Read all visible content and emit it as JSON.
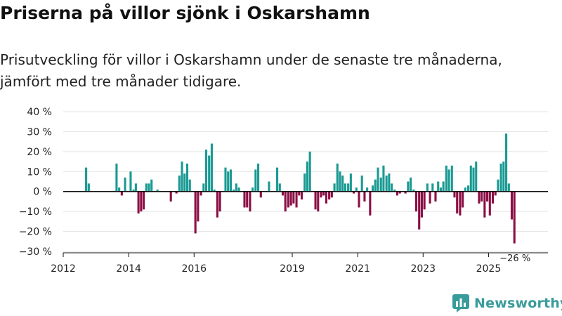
{
  "title": "Priserna på villor sjönk i Oskarshamn",
  "subtitle_line1": "Prisutveckling för villor i Oskarshamn under de senaste tre månaderna,",
  "subtitle_line2": "jämfört med tre månader tidigare.",
  "brand": "Newsworthy",
  "colors": {
    "positive": "#1a9a93",
    "negative": "#8b0f45",
    "grid": "#e3e3e3",
    "axis": "#111111"
  },
  "chart_data": {
    "type": "bar",
    "ylabel": "",
    "xlabel": "",
    "ylim": [
      -30,
      40
    ],
    "yticks": [
      40,
      30,
      20,
      10,
      0,
      -10,
      -20,
      -30
    ],
    "ytick_labels": [
      "40 %",
      "30 %",
      "20 %",
      "10 %",
      "0 %",
      "−10 %",
      "−20 %",
      "−30 %"
    ],
    "xticks": [
      2012,
      2014,
      2016,
      2019,
      2021,
      2023,
      2025
    ],
    "xtick_labels": [
      "2012",
      "2014",
      "2016",
      "2019",
      "2021",
      "2023",
      "2025"
    ],
    "x_start": 2012,
    "x_end": 2026,
    "annotation": "−26 %",
    "bars": [
      {
        "x": 2012.7,
        "v": 12
      },
      {
        "x": 2012.78,
        "v": 4
      },
      {
        "x": 2013.63,
        "v": 14
      },
      {
        "x": 2013.71,
        "v": 2
      },
      {
        "x": 2013.79,
        "v": -2
      },
      {
        "x": 2013.89,
        "v": 7
      },
      {
        "x": 2014.06,
        "v": 10
      },
      {
        "x": 2014.15,
        "v": 1
      },
      {
        "x": 2014.22,
        "v": 4
      },
      {
        "x": 2014.3,
        "v": -11
      },
      {
        "x": 2014.38,
        "v": -10
      },
      {
        "x": 2014.46,
        "v": -9
      },
      {
        "x": 2014.54,
        "v": 4
      },
      {
        "x": 2014.62,
        "v": 4
      },
      {
        "x": 2014.7,
        "v": 6
      },
      {
        "x": 2014.88,
        "v": 1
      },
      {
        "x": 2015.29,
        "v": -5
      },
      {
        "x": 2015.46,
        "v": -1
      },
      {
        "x": 2015.55,
        "v": 8
      },
      {
        "x": 2015.63,
        "v": 15
      },
      {
        "x": 2015.71,
        "v": 9
      },
      {
        "x": 2015.79,
        "v": 14
      },
      {
        "x": 2015.87,
        "v": 6
      },
      {
        "x": 2016.04,
        "v": -21
      },
      {
        "x": 2016.12,
        "v": -15
      },
      {
        "x": 2016.21,
        "v": -2
      },
      {
        "x": 2016.29,
        "v": 4
      },
      {
        "x": 2016.37,
        "v": 21
      },
      {
        "x": 2016.46,
        "v": 18
      },
      {
        "x": 2016.54,
        "v": 24
      },
      {
        "x": 2016.62,
        "v": 1
      },
      {
        "x": 2016.71,
        "v": -13
      },
      {
        "x": 2016.79,
        "v": -10
      },
      {
        "x": 2016.96,
        "v": 12
      },
      {
        "x": 2017.04,
        "v": 10
      },
      {
        "x": 2017.12,
        "v": 11
      },
      {
        "x": 2017.21,
        "v": 1
      },
      {
        "x": 2017.29,
        "v": 4
      },
      {
        "x": 2017.37,
        "v": 2
      },
      {
        "x": 2017.54,
        "v": -8
      },
      {
        "x": 2017.62,
        "v": -8
      },
      {
        "x": 2017.71,
        "v": -10
      },
      {
        "x": 2017.79,
        "v": 2
      },
      {
        "x": 2017.88,
        "v": 11
      },
      {
        "x": 2017.96,
        "v": 14
      },
      {
        "x": 2018.04,
        "v": -3
      },
      {
        "x": 2018.29,
        "v": 5
      },
      {
        "x": 2018.54,
        "v": 12
      },
      {
        "x": 2018.62,
        "v": 4
      },
      {
        "x": 2018.71,
        "v": -2
      },
      {
        "x": 2018.79,
        "v": -10
      },
      {
        "x": 2018.88,
        "v": -8
      },
      {
        "x": 2018.96,
        "v": -7
      },
      {
        "x": 2019.04,
        "v": -6
      },
      {
        "x": 2019.13,
        "v": -8
      },
      {
        "x": 2019.21,
        "v": -2
      },
      {
        "x": 2019.29,
        "v": -4
      },
      {
        "x": 2019.38,
        "v": 9
      },
      {
        "x": 2019.46,
        "v": 15
      },
      {
        "x": 2019.54,
        "v": 20
      },
      {
        "x": 2019.71,
        "v": -9
      },
      {
        "x": 2019.79,
        "v": -10
      },
      {
        "x": 2019.88,
        "v": -3
      },
      {
        "x": 2019.96,
        "v": -2
      },
      {
        "x": 2020.04,
        "v": -6
      },
      {
        "x": 2020.13,
        "v": -4
      },
      {
        "x": 2020.21,
        "v": -3
      },
      {
        "x": 2020.29,
        "v": 4
      },
      {
        "x": 2020.38,
        "v": 14
      },
      {
        "x": 2020.46,
        "v": 10
      },
      {
        "x": 2020.54,
        "v": 8
      },
      {
        "x": 2020.62,
        "v": 4
      },
      {
        "x": 2020.71,
        "v": 4
      },
      {
        "x": 2020.79,
        "v": 9
      },
      {
        "x": 2020.88,
        "v": -1
      },
      {
        "x": 2020.96,
        "v": 2
      },
      {
        "x": 2021.04,
        "v": -8
      },
      {
        "x": 2021.13,
        "v": 8
      },
      {
        "x": 2021.21,
        "v": -5
      },
      {
        "x": 2021.29,
        "v": 2
      },
      {
        "x": 2021.38,
        "v": -12
      },
      {
        "x": 2021.46,
        "v": 3
      },
      {
        "x": 2021.54,
        "v": 6
      },
      {
        "x": 2021.62,
        "v": 12
      },
      {
        "x": 2021.71,
        "v": 7
      },
      {
        "x": 2021.79,
        "v": 13
      },
      {
        "x": 2021.88,
        "v": 8
      },
      {
        "x": 2021.96,
        "v": 9
      },
      {
        "x": 2022.04,
        "v": 4
      },
      {
        "x": 2022.13,
        "v": 1
      },
      {
        "x": 2022.21,
        "v": -2
      },
      {
        "x": 2022.29,
        "v": -1
      },
      {
        "x": 2022.46,
        "v": -1
      },
      {
        "x": 2022.54,
        "v": 5
      },
      {
        "x": 2022.62,
        "v": 7
      },
      {
        "x": 2022.71,
        "v": 1
      },
      {
        "x": 2022.79,
        "v": -10
      },
      {
        "x": 2022.88,
        "v": -19
      },
      {
        "x": 2022.96,
        "v": -13
      },
      {
        "x": 2023.04,
        "v": -9
      },
      {
        "x": 2023.13,
        "v": 4
      },
      {
        "x": 2023.21,
        "v": -6
      },
      {
        "x": 2023.29,
        "v": 4
      },
      {
        "x": 2023.38,
        "v": -5
      },
      {
        "x": 2023.46,
        "v": 5
      },
      {
        "x": 2023.54,
        "v": 2
      },
      {
        "x": 2023.62,
        "v": 5
      },
      {
        "x": 2023.71,
        "v": 13
      },
      {
        "x": 2023.79,
        "v": 11
      },
      {
        "x": 2023.88,
        "v": 13
      },
      {
        "x": 2023.96,
        "v": -3
      },
      {
        "x": 2024.04,
        "v": -11
      },
      {
        "x": 2024.13,
        "v": -12
      },
      {
        "x": 2024.21,
        "v": -8
      },
      {
        "x": 2024.29,
        "v": 2
      },
      {
        "x": 2024.38,
        "v": 3
      },
      {
        "x": 2024.46,
        "v": 13
      },
      {
        "x": 2024.54,
        "v": 12
      },
      {
        "x": 2024.62,
        "v": 15
      },
      {
        "x": 2024.71,
        "v": -6
      },
      {
        "x": 2024.79,
        "v": -5
      },
      {
        "x": 2024.88,
        "v": -13
      },
      {
        "x": 2024.96,
        "v": -5
      },
      {
        "x": 2025.04,
        "v": -12
      },
      {
        "x": 2025.13,
        "v": -6
      },
      {
        "x": 2025.21,
        "v": -2
      },
      {
        "x": 2025.29,
        "v": 6
      },
      {
        "x": 2025.38,
        "v": 14
      },
      {
        "x": 2025.46,
        "v": 15
      },
      {
        "x": 2025.54,
        "v": 29
      },
      {
        "x": 2025.62,
        "v": 4
      },
      {
        "x": 2025.71,
        "v": -14
      },
      {
        "x": 2025.79,
        "v": -26
      }
    ]
  }
}
